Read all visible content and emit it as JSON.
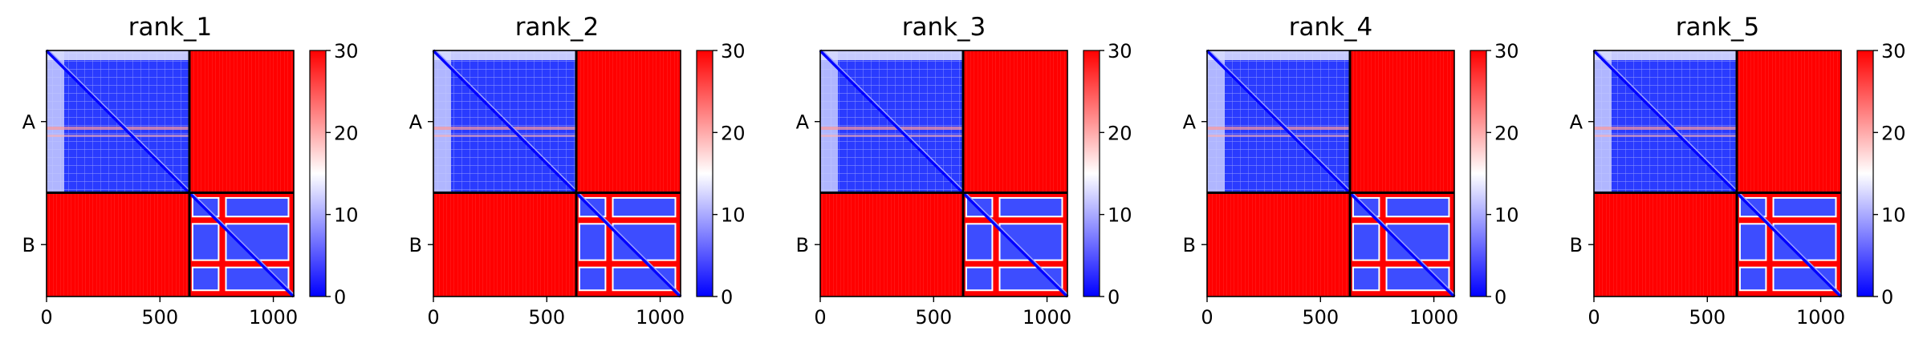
{
  "chart_data": {
    "type": "heatmap",
    "colormap": {
      "name": "bwr",
      "low": "#0000ff",
      "mid": "#ffffff",
      "high": "#ff0000"
    },
    "color_range": [
      0,
      30
    ],
    "colorbar_ticks": [
      "0",
      "10",
      "20",
      "30"
    ],
    "x_ticks": [
      {
        "value": 0,
        "label": "0"
      },
      {
        "value": 500,
        "label": "500"
      },
      {
        "value": 1000,
        "label": "1000"
      }
    ],
    "x_range": [
      0,
      1090
    ],
    "y_ticks": [
      "A",
      "B"
    ],
    "chain_boundary": 630,
    "panels": [
      {
        "title": "rank_1",
        "mean_values": {
          "A-A": 6,
          "A-B": 30,
          "B-A": 30,
          "B-B": 8
        }
      },
      {
        "title": "rank_2",
        "mean_values": {
          "A-A": 6,
          "A-B": 30,
          "B-A": 30,
          "B-B": 8
        }
      },
      {
        "title": "rank_3",
        "mean_values": {
          "A-A": 6,
          "A-B": 30,
          "B-A": 30,
          "B-B": 8
        }
      },
      {
        "title": "rank_4",
        "mean_values": {
          "A-A": 6,
          "A-B": 30,
          "B-A": 30,
          "B-B": 8
        }
      },
      {
        "title": "rank_5",
        "mean_values": {
          "A-A": 6,
          "A-B": 30,
          "B-A": 30,
          "B-B": 8
        }
      }
    ]
  }
}
